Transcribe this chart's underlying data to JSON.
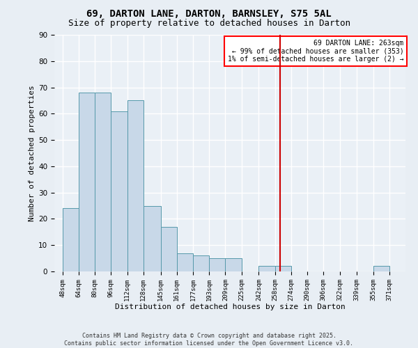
{
  "title": "69, DARTON LANE, DARTON, BARNSLEY, S75 5AL",
  "subtitle": "Size of property relative to detached houses in Darton",
  "xlabel": "Distribution of detached houses by size in Darton",
  "ylabel": "Number of detached properties",
  "bar_left_edges": [
    48,
    64,
    80,
    96,
    112,
    128,
    145,
    161,
    177,
    193,
    209,
    225,
    242,
    258,
    274,
    290,
    306,
    322,
    339,
    355
  ],
  "bar_heights": [
    24,
    68,
    68,
    61,
    65,
    25,
    17,
    7,
    6,
    5,
    5,
    0,
    2,
    2,
    0,
    0,
    0,
    0,
    0,
    2
  ],
  "bar_widths": [
    16,
    16,
    16,
    16,
    16,
    17,
    16,
    16,
    16,
    16,
    16,
    17,
    16,
    16,
    16,
    16,
    16,
    17,
    16,
    16
  ],
  "bar_color": "#c8d8e8",
  "bar_edgecolor": "#5599aa",
  "vline_x": 263,
  "vline_color": "#cc0000",
  "tick_labels": [
    "48sqm",
    "64sqm",
    "80sqm",
    "96sqm",
    "112sqm",
    "128sqm",
    "145sqm",
    "161sqm",
    "177sqm",
    "193sqm",
    "209sqm",
    "225sqm",
    "242sqm",
    "258sqm",
    "274sqm",
    "290sqm",
    "306sqm",
    "322sqm",
    "339sqm",
    "355sqm",
    "371sqm"
  ],
  "tick_positions": [
    48,
    64,
    80,
    96,
    112,
    128,
    145,
    161,
    177,
    193,
    209,
    225,
    242,
    258,
    274,
    290,
    306,
    322,
    339,
    355,
    371
  ],
  "ylim": [
    0,
    90
  ],
  "xlim": [
    40,
    387
  ],
  "annotation_title": "69 DARTON LANE: 263sqm",
  "annotation_line1": "← 99% of detached houses are smaller (353)",
  "annotation_line2": "1% of semi-detached houses are larger (2) →",
  "footer_line1": "Contains HM Land Registry data © Crown copyright and database right 2025.",
  "footer_line2": "Contains public sector information licensed under the Open Government Licence v3.0.",
  "bg_color": "#e8eef4",
  "plot_bg_color": "#eaf0f6",
  "grid_color": "#ffffff",
  "title_fontsize": 10,
  "subtitle_fontsize": 9,
  "xlabel_fontsize": 8,
  "ylabel_fontsize": 8,
  "tick_fontsize": 6.5,
  "footer_fontsize": 6,
  "ann_fontsize": 7
}
